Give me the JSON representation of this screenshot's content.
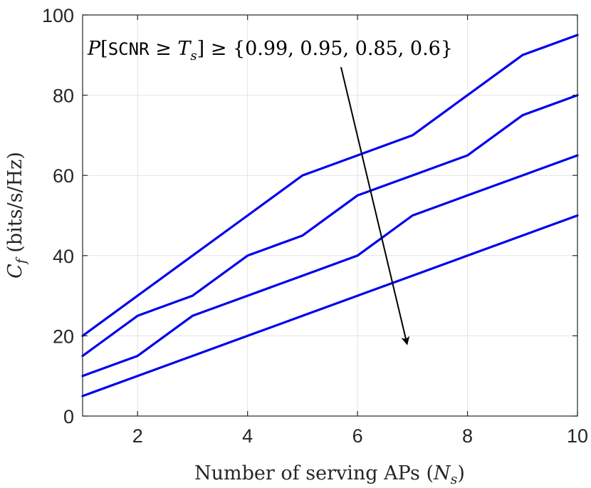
{
  "chart_data": {
    "type": "line",
    "xlabel": "Number of serving APs (N_s)",
    "ylabel": "C_f (bits/s/Hz)",
    "xlim": [
      1,
      10
    ],
    "ylim": [
      0,
      100
    ],
    "xticks": [
      2,
      4,
      6,
      8,
      10
    ],
    "yticks": [
      0,
      20,
      40,
      60,
      80,
      100
    ],
    "grid": true,
    "x": [
      1,
      2,
      3,
      4,
      5,
      6,
      7,
      8,
      9,
      10
    ],
    "series": [
      {
        "values": [
          20,
          30,
          40,
          50,
          60,
          65,
          70,
          80,
          90,
          95
        ]
      },
      {
        "values": [
          15,
          25,
          30,
          40,
          45,
          55,
          60,
          65,
          75,
          80
        ]
      },
      {
        "values": [
          10,
          15,
          25,
          30,
          35,
          40,
          50,
          55,
          60,
          65
        ]
      },
      {
        "values": [
          5,
          10,
          15,
          20,
          25,
          30,
          35,
          40,
          45,
          50
        ]
      }
    ],
    "annotation": {
      "text": "P[SCNR ≥ T_s] ≥ {0.99, 0.95, 0.85, 0.6}",
      "arrow_from": [
        5.7,
        87
      ],
      "arrow_to": [
        6.9,
        18
      ]
    },
    "colors": {
      "series": "#0000ee",
      "grid": "#e3e3e3",
      "axis": "#262626"
    }
  }
}
